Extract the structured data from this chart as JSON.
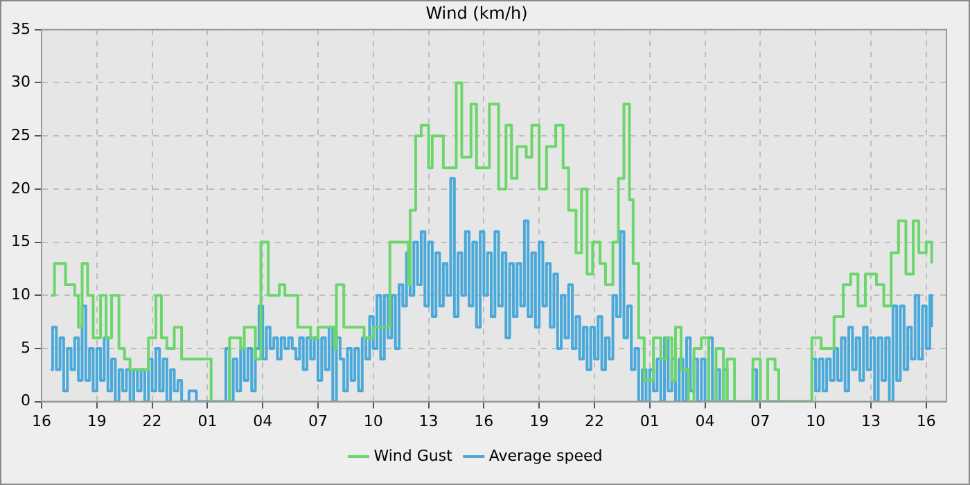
{
  "chart_data": {
    "type": "step",
    "title": "Wind (km/h)",
    "xlim": [
      "--01-01T16:00",
      "--01-03T17:06"
    ],
    "ylim": [
      0,
      35
    ],
    "xticks": [
      {
        "value": "--01-01T16:00",
        "label": "16"
      },
      {
        "value": "--01-01T19:00",
        "label": "19"
      },
      {
        "value": "--01-01T22:00",
        "label": "22"
      },
      {
        "value": "--01-02T01:00",
        "label": "01"
      },
      {
        "value": "--01-02T04:00",
        "label": "04"
      },
      {
        "value": "--01-02T07:00",
        "label": "07"
      },
      {
        "value": "--01-02T10:00",
        "label": "10"
      },
      {
        "value": "--01-02T13:00",
        "label": "13"
      },
      {
        "value": "--01-02T16:00",
        "label": "16"
      },
      {
        "value": "--01-02T19:00",
        "label": "19"
      },
      {
        "value": "--01-02T22:00",
        "label": "22"
      },
      {
        "value": "--01-03T01:00",
        "label": "01"
      },
      {
        "value": "--01-03T04:00",
        "label": "04"
      },
      {
        "value": "--01-03T07:00",
        "label": "07"
      },
      {
        "value": "--01-03T10:00",
        "label": "10"
      },
      {
        "value": "--01-03T13:00",
        "label": "13"
      },
      {
        "value": "--01-03T16:00",
        "label": "16"
      }
    ],
    "yticks": [
      0,
      5,
      10,
      15,
      20,
      25,
      30,
      35
    ],
    "grid": true,
    "legend": "bottom",
    "marker": "none",
    "line_style": "solid",
    "series": [
      {
        "name": "Wind Gust",
        "color": "#6cd66c",
        "x": [
          "--01-01T16:30",
          "--01-01T16:42",
          "--01-01T17:18",
          "--01-01T17:48",
          "--01-01T18:00",
          "--01-01T18:12",
          "--01-01T18:30",
          "--01-01T18:48",
          "--01-01T19:12",
          "--01-01T19:30",
          "--01-01T19:48",
          "--01-01T20:12",
          "--01-01T20:30",
          "--01-01T20:48",
          "--01-01T21:30",
          "--01-01T21:48",
          "--01-01T22:12",
          "--01-01T22:30",
          "--01-01T22:48",
          "--01-01T23:12",
          "--01-01T23:36",
          "--01-02T00:30",
          "--01-02T01:12",
          "--01-02T01:54",
          "--01-02T02:12",
          "--01-02T02:48",
          "--01-02T03:00",
          "--01-02T03:36",
          "--01-02T03:54",
          "--01-02T04:18",
          "--01-02T04:54",
          "--01-02T05:12",
          "--01-02T05:54",
          "--01-02T06:36",
          "--01-02T07:00",
          "--01-02T07:54",
          "--01-02T08:00",
          "--01-02T08:24",
          "--01-02T09:18",
          "--01-02T09:30",
          "--01-02T10:00",
          "--01-02T10:30",
          "--01-02T10:54",
          "--01-02T11:18",
          "--01-02T11:54",
          "--01-02T12:00",
          "--01-02T12:18",
          "--01-02T12:36",
          "--01-02T13:00",
          "--01-02T13:12",
          "--01-02T13:48",
          "--01-02T14:30",
          "--01-02T14:48",
          "--01-02T15:18",
          "--01-02T15:36",
          "--01-02T16:18",
          "--01-02T16:48",
          "--01-02T17:12",
          "--01-02T17:30",
          "--01-02T17:48",
          "--01-02T18:18",
          "--01-02T18:36",
          "--01-02T19:00",
          "--01-02T19:24",
          "--01-02T19:54",
          "--01-02T20:18",
          "--01-02T20:36",
          "--01-02T21:00",
          "--01-02T21:18",
          "--01-02T21:36",
          "--01-02T21:54",
          "--01-02T22:18",
          "--01-02T22:36",
          "--01-02T23:00",
          "--01-02T23:18",
          "--01-02T23:36",
          "--01-02T23:54",
          "--01-03T00:06",
          "--01-03T00:24",
          "--01-03T00:42",
          "--01-03T01:12",
          "--01-03T01:36",
          "--01-03T01:54",
          "--01-03T02:12",
          "--01-03T02:24",
          "--01-03T02:42",
          "--01-03T03:06",
          "--01-03T03:24",
          "--01-03T03:48",
          "--01-03T04:12",
          "--01-03T04:36",
          "--01-03T05:00",
          "--01-03T05:12",
          "--01-03T05:36",
          "--01-03T06:36",
          "--01-03T07:00",
          "--01-03T07:24",
          "--01-03T07:48",
          "--01-03T08:00",
          "--01-03T09:48",
          "--01-03T10:18",
          "--01-03T11:00",
          "--01-03T11:30",
          "--01-03T11:54",
          "--01-03T12:18",
          "--01-03T12:42",
          "--01-03T13:18",
          "--01-03T13:42",
          "--01-03T14:06",
          "--01-03T14:30",
          "--01-03T14:54",
          "--01-03T15:18",
          "--01-03T15:36",
          "--01-03T16:00",
          "--01-03T16:18"
        ],
        "values": [
          10,
          13,
          11,
          10,
          7,
          13,
          10,
          6,
          10,
          6,
          10,
          5,
          4,
          3,
          3,
          6,
          10,
          6,
          5,
          7,
          4,
          4,
          0,
          0,
          6,
          5,
          7,
          4,
          15,
          10,
          11,
          10,
          7,
          6,
          7,
          5,
          11,
          7,
          7,
          6,
          7,
          7,
          15,
          15,
          11,
          18,
          25,
          26,
          22,
          25,
          22,
          30,
          23,
          28,
          22,
          28,
          20,
          26,
          21,
          24,
          23,
          26,
          20,
          24,
          26,
          22,
          18,
          14,
          20,
          12,
          15,
          13,
          11,
          15,
          21,
          28,
          19,
          13,
          6,
          2,
          6,
          4,
          6,
          2,
          7,
          3,
          0,
          5,
          6,
          0,
          5,
          0,
          4,
          0,
          4,
          0,
          4,
          3,
          0,
          6,
          5,
          8,
          11,
          12,
          9,
          12,
          11,
          9,
          14,
          17,
          12,
          17,
          14,
          15,
          13
        ]
      },
      {
        "name": "Average speed",
        "color": "#4ba9d9",
        "x": [
          "--01-01T16:30",
          "--01-01T16:36",
          "--01-01T16:48",
          "--01-01T17:00",
          "--01-01T17:12",
          "--01-01T17:24",
          "--01-01T17:36",
          "--01-01T17:48",
          "--01-01T18:00",
          "--01-01T18:12",
          "--01-01T18:24",
          "--01-01T18:36",
          "--01-01T18:48",
          "--01-01T19:00",
          "--01-01T19:12",
          "--01-01T19:24",
          "--01-01T19:36",
          "--01-01T19:48",
          "--01-01T20:00",
          "--01-01T20:12",
          "--01-01T20:24",
          "--01-01T20:36",
          "--01-01T20:48",
          "--01-01T21:00",
          "--01-01T21:12",
          "--01-01T21:24",
          "--01-01T21:36",
          "--01-01T21:48",
          "--01-01T22:00",
          "--01-01T22:12",
          "--01-01T22:24",
          "--01-01T22:36",
          "--01-01T22:48",
          "--01-01T23:00",
          "--01-01T23:12",
          "--01-01T23:24",
          "--01-01T23:36",
          "--01-02T00:00",
          "--01-02T00:24",
          "--01-02T01:00",
          "--01-02T02:00",
          "--01-02T02:12",
          "--01-02T02:24",
          "--01-02T02:36",
          "--01-02T02:48",
          "--01-02T03:00",
          "--01-02T03:12",
          "--01-02T03:24",
          "--01-02T03:36",
          "--01-02T03:48",
          "--01-02T04:00",
          "--01-02T04:12",
          "--01-02T04:24",
          "--01-02T04:36",
          "--01-02T04:48",
          "--01-02T05:00",
          "--01-02T05:12",
          "--01-02T05:24",
          "--01-02T05:36",
          "--01-02T05:48",
          "--01-02T06:00",
          "--01-02T06:12",
          "--01-02T06:24",
          "--01-02T06:36",
          "--01-02T06:48",
          "--01-02T07:00",
          "--01-02T07:12",
          "--01-02T07:24",
          "--01-02T07:36",
          "--01-02T07:48",
          "--01-02T08:00",
          "--01-02T08:12",
          "--01-02T08:24",
          "--01-02T08:36",
          "--01-02T08:48",
          "--01-02T09:00",
          "--01-02T09:12",
          "--01-02T09:24",
          "--01-02T09:36",
          "--01-02T09:48",
          "--01-02T10:00",
          "--01-02T10:12",
          "--01-02T10:24",
          "--01-02T10:36",
          "--01-02T10:48",
          "--01-02T11:00",
          "--01-02T11:12",
          "--01-02T11:24",
          "--01-02T11:36",
          "--01-02T11:48",
          "--01-02T12:00",
          "--01-02T12:12",
          "--01-02T12:24",
          "--01-02T12:36",
          "--01-02T12:48",
          "--01-02T13:00",
          "--01-02T13:12",
          "--01-02T13:24",
          "--01-02T13:36",
          "--01-02T13:48",
          "--01-02T14:00",
          "--01-02T14:12",
          "--01-02T14:24",
          "--01-02T14:36",
          "--01-02T14:48",
          "--01-02T15:00",
          "--01-02T15:12",
          "--01-02T15:24",
          "--01-02T15:36",
          "--01-02T15:48",
          "--01-02T16:00",
          "--01-02T16:12",
          "--01-02T16:24",
          "--01-02T16:36",
          "--01-02T16:48",
          "--01-02T17:00",
          "--01-02T17:12",
          "--01-02T17:24",
          "--01-02T17:36",
          "--01-02T17:48",
          "--01-02T18:00",
          "--01-02T18:12",
          "--01-02T18:24",
          "--01-02T18:36",
          "--01-02T18:48",
          "--01-02T19:00",
          "--01-02T19:12",
          "--01-02T19:24",
          "--01-02T19:36",
          "--01-02T19:48",
          "--01-02T20:00",
          "--01-02T20:12",
          "--01-02T20:24",
          "--01-02T20:36",
          "--01-02T20:48",
          "--01-02T21:00",
          "--01-02T21:12",
          "--01-02T21:24",
          "--01-02T21:36",
          "--01-02T21:48",
          "--01-02T22:00",
          "--01-02T22:12",
          "--01-02T22:24",
          "--01-02T22:36",
          "--01-02T22:48",
          "--01-02T23:00",
          "--01-02T23:12",
          "--01-02T23:24",
          "--01-02T23:36",
          "--01-02T23:48",
          "--01-03T00:00",
          "--01-03T00:12",
          "--01-03T00:24",
          "--01-03T00:36",
          "--01-03T00:48",
          "--01-03T01:00",
          "--01-03T01:12",
          "--01-03T01:24",
          "--01-03T01:36",
          "--01-03T01:48",
          "--01-03T02:00",
          "--01-03T02:12",
          "--01-03T02:24",
          "--01-03T02:36",
          "--01-03T02:48",
          "--01-03T03:00",
          "--01-03T03:12",
          "--01-03T03:24",
          "--01-03T03:36",
          "--01-03T03:48",
          "--01-03T04:00",
          "--01-03T04:12",
          "--01-03T04:24",
          "--01-03T04:36",
          "--01-03T04:48",
          "--01-03T05:00",
          "--01-03T05:12",
          "--01-03T06:36",
          "--01-03T06:48",
          "--01-03T07:24",
          "--01-03T09:48",
          "--01-03T10:00",
          "--01-03T10:12",
          "--01-03T10:24",
          "--01-03T10:36",
          "--01-03T10:48",
          "--01-03T11:00",
          "--01-03T11:12",
          "--01-03T11:24",
          "--01-03T11:36",
          "--01-03T11:48",
          "--01-03T12:00",
          "--01-03T12:12",
          "--01-03T12:24",
          "--01-03T12:36",
          "--01-03T12:48",
          "--01-03T13:00",
          "--01-03T13:12",
          "--01-03T13:24",
          "--01-03T13:36",
          "--01-03T13:48",
          "--01-03T14:00",
          "--01-03T14:12",
          "--01-03T14:24",
          "--01-03T14:36",
          "--01-03T14:48",
          "--01-03T15:00",
          "--01-03T15:12",
          "--01-03T15:24",
          "--01-03T15:36",
          "--01-03T15:48",
          "--01-03T16:00",
          "--01-03T16:12",
          "--01-03T16:18"
        ],
        "values": [
          3,
          7,
          3,
          6,
          1,
          5,
          3,
          6,
          2,
          9,
          2,
          5,
          1,
          5,
          2,
          6,
          1,
          4,
          0,
          3,
          1,
          3,
          0,
          3,
          1,
          3,
          0,
          4,
          1,
          5,
          1,
          4,
          0,
          3,
          1,
          2,
          0,
          1,
          0,
          0,
          5,
          0,
          4,
          1,
          5,
          2,
          5,
          1,
          5,
          9,
          4,
          7,
          5,
          6,
          4,
          6,
          5,
          6,
          5,
          4,
          6,
          3,
          6,
          4,
          6,
          2,
          6,
          3,
          7,
          0,
          6,
          4,
          1,
          5,
          2,
          5,
          1,
          6,
          4,
          8,
          5,
          10,
          4,
          10,
          6,
          10,
          5,
          11,
          9,
          14,
          10,
          15,
          11,
          16,
          9,
          15,
          8,
          14,
          9,
          13,
          10,
          21,
          8,
          14,
          10,
          16,
          9,
          15,
          7,
          16,
          10,
          14,
          8,
          16,
          9,
          14,
          6,
          13,
          8,
          13,
          9,
          17,
          8,
          14,
          7,
          15,
          9,
          13,
          7,
          12,
          5,
          10,
          6,
          11,
          5,
          8,
          4,
          7,
          3,
          7,
          4,
          8,
          3,
          6,
          4,
          10,
          8,
          16,
          6,
          9,
          3,
          5,
          0,
          3,
          0,
          3,
          1,
          4,
          0,
          6,
          1,
          4,
          0,
          4,
          0,
          6,
          1,
          4,
          0,
          4,
          0,
          6,
          0,
          3,
          0,
          3,
          0,
          3,
          0,
          0,
          4,
          1,
          4,
          1,
          4,
          2,
          5,
          2,
          6,
          1,
          7,
          3,
          6,
          2,
          7,
          3,
          6,
          0,
          6,
          2,
          6,
          0,
          9,
          2,
          9,
          3,
          7,
          4,
          10,
          4,
          9,
          5,
          10,
          7
        ]
      }
    ]
  }
}
